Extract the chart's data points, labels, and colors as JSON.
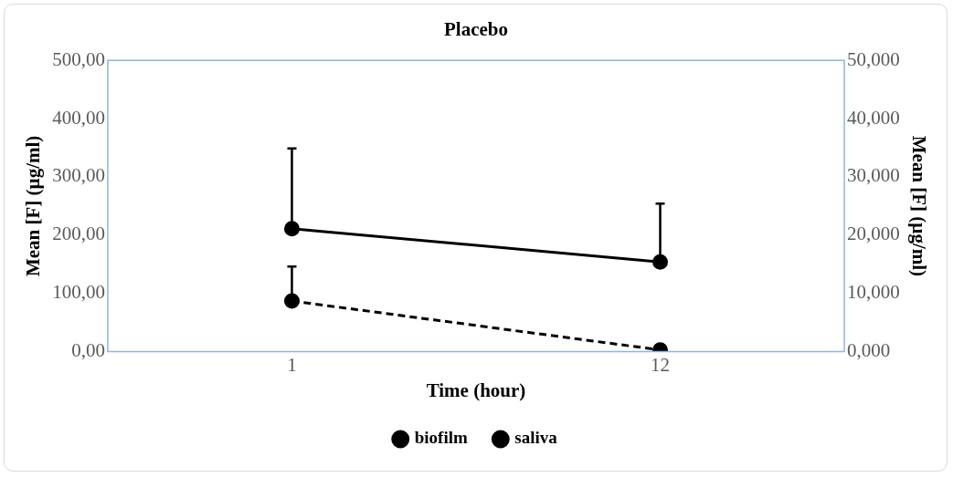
{
  "chart_data": {
    "type": "line",
    "title": "Placebo",
    "xlabel": "Time (hour)",
    "ylabel": "Mean [F] (µg/ml)",
    "y2label": "Mean [F] (µg/ml)",
    "categories": [
      "1",
      "12"
    ],
    "series": [
      {
        "name": "biofilm",
        "color": "#000000",
        "values": [
          211,
          154
        ],
        "errors": [
          [
            211,
            349
          ],
          [
            154,
            254
          ]
        ],
        "line_style": "solid"
      },
      {
        "name": "saliva",
        "color": "#000000",
        "values": [
          8.7,
          0.3
        ],
        "errors": [
          [
            8.7,
            14.6
          ],
          null
        ],
        "line_style": "dashed",
        "axis": "y2"
      }
    ],
    "ylim": [
      0,
      500
    ],
    "yticks": [
      {
        "value": 0,
        "label": "0,00"
      },
      {
        "value": 100,
        "label": "100,00"
      },
      {
        "value": 200,
        "label": "200,00"
      },
      {
        "value": 300,
        "label": "300,00"
      },
      {
        "value": 400,
        "label": "400,00"
      },
      {
        "value": 500,
        "label": "500,00"
      }
    ],
    "y2lim": [
      0,
      50
    ],
    "y2ticks": [
      {
        "value": 0,
        "label": "0,000"
      },
      {
        "value": 10,
        "label": "10,000"
      },
      {
        "value": 20,
        "label": "20,000"
      },
      {
        "value": 30,
        "label": "30,000"
      },
      {
        "value": 40,
        "label": "40,000"
      },
      {
        "value": 50,
        "label": "50,000"
      }
    ],
    "grid": false,
    "legend": "bottom",
    "marker": "circle"
  }
}
